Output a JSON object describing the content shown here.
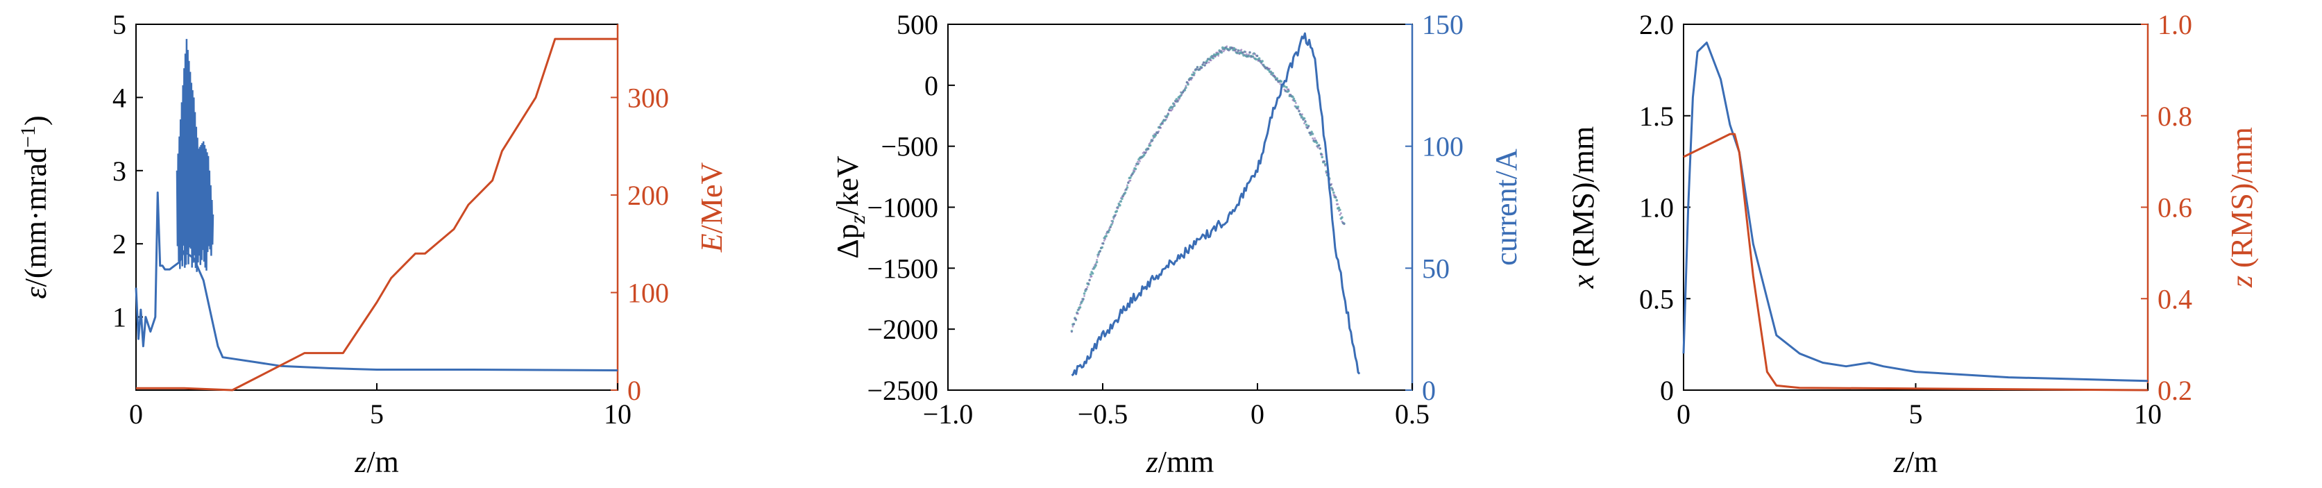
{
  "colors": {
    "blue": "#3a6db5",
    "orange": "#cc4a24",
    "axis": "#000000",
    "phase": "#5aa0a8"
  },
  "chart_data": [
    {
      "type": "line",
      "xlabel": {
        "var": "z",
        "unit": "/m"
      },
      "ylabel_left": {
        "var": "ε",
        "unit": "/(mm·mrad",
        "sup": "−1",
        "close": ")"
      },
      "ylabel_right": {
        "var": "E",
        "unit": "/MeV"
      },
      "xlim": [
        0,
        10
      ],
      "ylim_left": [
        0,
        5
      ],
      "ylim_right": [
        0,
        375
      ],
      "xticks": [
        "0",
        "5",
        "10"
      ],
      "xtick_values": [
        0,
        5,
        10
      ],
      "yticks_left": [
        "1",
        "2",
        "3",
        "4",
        "5"
      ],
      "ytick_values_left": [
        1,
        2,
        3,
        4,
        5
      ],
      "yticks_right": [
        "0",
        "100",
        "200",
        "300"
      ],
      "ytick_values_right": [
        0,
        100,
        200,
        300
      ],
      "series": [
        {
          "axis": "left",
          "color": "blue",
          "x": [
            0,
            0.05,
            0.1,
            0.15,
            0.2,
            0.3,
            0.4,
            0.45,
            0.5,
            0.55,
            0.6,
            0.7,
            0.8,
            0.9,
            1.0,
            1.2,
            1.4,
            1.5,
            1.6,
            1.7,
            1.8,
            2.0,
            2.5,
            3.0,
            4.0,
            5.0,
            7.0,
            10.0
          ],
          "y": [
            1.4,
            0.7,
            1.1,
            0.6,
            1.0,
            0.8,
            1.0,
            2.7,
            1.7,
            1.7,
            1.65,
            1.65,
            1.7,
            1.75,
            1.9,
            1.8,
            1.5,
            1.2,
            0.9,
            0.6,
            0.45,
            0.43,
            0.38,
            0.33,
            0.3,
            0.28,
            0.28,
            0.27
          ]
        },
        {
          "axis": "left",
          "color": "blue",
          "style": "oscillation",
          "x": [
            0.85,
            1.0,
            1.05,
            1.1,
            1.15,
            1.2,
            1.25,
            1.3,
            1.4,
            1.5,
            1.6
          ],
          "y": [
            3.0,
            4.4,
            4.8,
            4.5,
            4.2,
            4.0,
            3.6,
            3.3,
            3.4,
            3.2,
            2.4
          ]
        },
        {
          "axis": "right",
          "color": "orange",
          "x": [
            0,
            1.0,
            2.0,
            3.5,
            4.3,
            5.0,
            5.3,
            5.8,
            6.0,
            6.6,
            6.9,
            7.4,
            7.6,
            8.3,
            8.7,
            10.0
          ],
          "y": [
            2,
            2,
            0,
            38,
            38,
            90,
            115,
            140,
            140,
            165,
            190,
            215,
            245,
            300,
            360,
            360
          ]
        }
      ]
    },
    {
      "type": "scatter",
      "xlabel": {
        "var": "z",
        "unit": "/mm"
      },
      "ylabel_left": {
        "text": "Δp",
        "sub": "z",
        "unit": "/keV"
      },
      "ylabel_right": {
        "text": "current/A"
      },
      "xlim": [
        -1.0,
        0.5
      ],
      "ylim_left": [
        -2500,
        500
      ],
      "ylim_right": [
        0,
        150
      ],
      "xticks": [
        "−1.0",
        "−0.5",
        "0",
        "0.5"
      ],
      "xtick_values": [
        -1.0,
        -0.5,
        0.0,
        0.5
      ],
      "yticks_left": [
        "500",
        "0",
        "−500",
        "−1000",
        "−1500",
        "−2000",
        "−2500"
      ],
      "ytick_values_left": [
        500,
        0,
        -500,
        -1000,
        -1500,
        -2000,
        -2500
      ],
      "yticks_right": [
        "0",
        "50",
        "100",
        "150"
      ],
      "ytick_values_right": [
        0,
        50,
        100,
        150
      ],
      "series": [
        {
          "axis": "left",
          "color": "phase",
          "style": "phase-space",
          "x": [
            -0.6,
            -0.5,
            -0.4,
            -0.3,
            -0.2,
            -0.1,
            0.0,
            0.1,
            0.2,
            0.28
          ],
          "y": [
            -2000,
            -1300,
            -700,
            -280,
            120,
            310,
            230,
            -50,
            -520,
            -1150
          ]
        },
        {
          "axis": "right",
          "color": "blue",
          "x": [
            -0.6,
            -0.5,
            -0.4,
            -0.3,
            -0.2,
            -0.1,
            0.0,
            0.05,
            0.1,
            0.15,
            0.18,
            0.22,
            0.25,
            0.3,
            0.33
          ],
          "y": [
            5,
            22,
            38,
            50,
            60,
            70,
            90,
            115,
            130,
            145,
            140,
            100,
            60,
            25,
            5
          ]
        }
      ]
    },
    {
      "type": "line",
      "xlabel": {
        "var": "z",
        "unit": "/m"
      },
      "ylabel_left": {
        "var": "x",
        "unit": " (RMS)/mm"
      },
      "ylabel_right": {
        "var": "z",
        "unit": " (RMS)/mm"
      },
      "xlim": [
        0,
        10
      ],
      "ylim_left": [
        0,
        2.0
      ],
      "ylim_right": [
        0.2,
        1.0
      ],
      "xticks": [
        "0",
        "5",
        "10"
      ],
      "xtick_values": [
        0,
        5,
        10
      ],
      "yticks_left": [
        "0",
        "0.5",
        "1.0",
        "1.5",
        "2.0"
      ],
      "ytick_values_left": [
        0,
        0.5,
        1.0,
        1.5,
        2.0
      ],
      "yticks_right": [
        "0.2",
        "0.4",
        "0.6",
        "0.8",
        "1.0"
      ],
      "ytick_values_right": [
        0.2,
        0.4,
        0.6,
        0.8,
        1.0
      ],
      "series": [
        {
          "axis": "left",
          "color": "blue",
          "x": [
            0,
            0.1,
            0.2,
            0.3,
            0.5,
            0.8,
            1.0,
            1.2,
            1.5,
            1.8,
            2.0,
            2.5,
            3.0,
            3.5,
            4.0,
            4.3,
            5.0,
            7.0,
            10.0
          ],
          "y": [
            0.2,
            1.0,
            1.6,
            1.85,
            1.9,
            1.7,
            1.45,
            1.3,
            0.8,
            0.5,
            0.3,
            0.2,
            0.15,
            0.13,
            0.15,
            0.13,
            0.1,
            0.07,
            0.05
          ]
        },
        {
          "axis": "right",
          "color": "orange",
          "x": [
            0,
            1.0,
            1.1,
            1.2,
            1.5,
            1.8,
            2.0,
            2.5,
            10.0
          ],
          "y": [
            0.71,
            0.76,
            0.76,
            0.72,
            0.45,
            0.24,
            0.21,
            0.205,
            0.2
          ]
        }
      ]
    }
  ]
}
